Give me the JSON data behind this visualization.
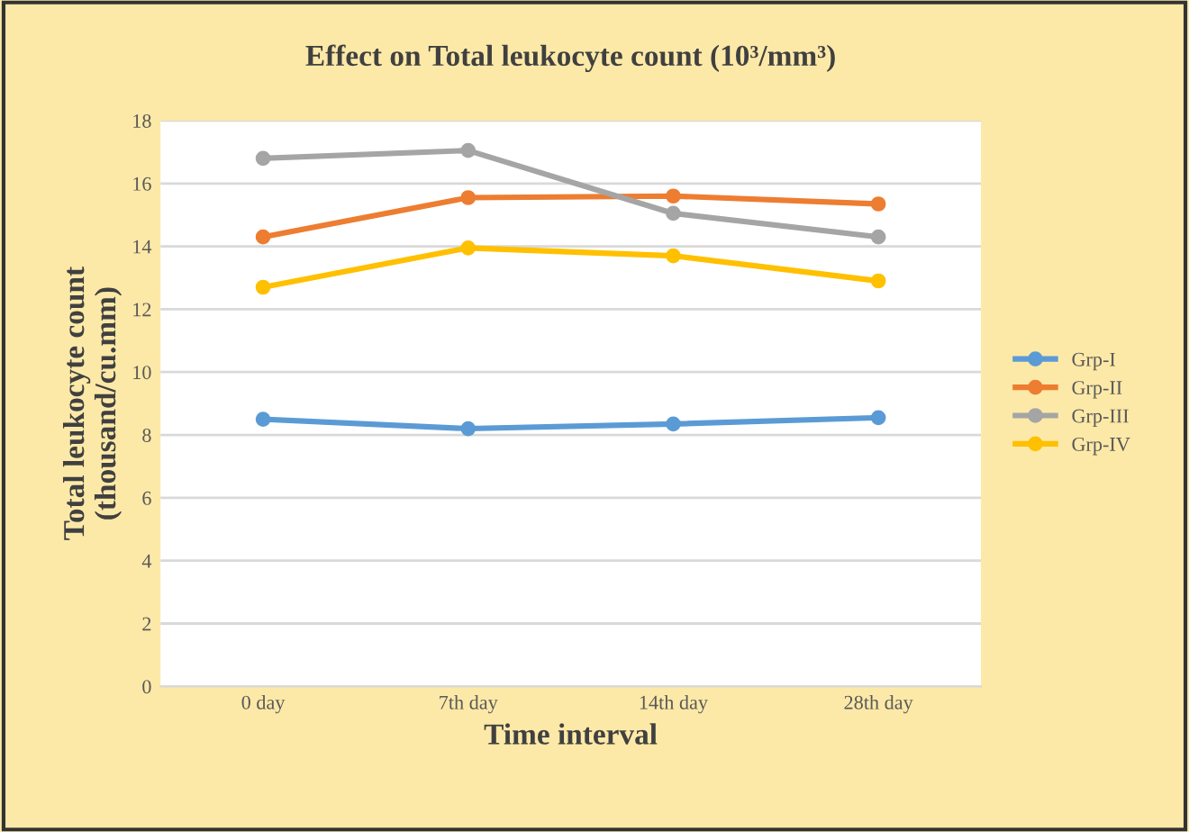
{
  "chart_data": {
    "type": "line",
    "title": "Effect on Total leukocyte count (10³/mm³)",
    "xlabel": "Time interval",
    "ylabel": "Total leukocyte count\n(thousand/cu.mm)",
    "categories": [
      "0 day",
      "7th day",
      "14th day",
      "28th day"
    ],
    "series": [
      {
        "name": "Grp-I",
        "color": "#5b9bd5",
        "values": [
          8.5,
          8.2,
          8.35,
          8.55
        ]
      },
      {
        "name": "Grp-II",
        "color": "#ed7d31",
        "values": [
          14.3,
          15.55,
          15.6,
          15.35
        ]
      },
      {
        "name": "Grp-III",
        "color": "#a5a5a5",
        "values": [
          16.8,
          17.05,
          15.05,
          14.3
        ]
      },
      {
        "name": "Grp-IV",
        "color": "#ffc000",
        "values": [
          12.7,
          13.95,
          13.7,
          12.9
        ]
      }
    ],
    "ylim": [
      0,
      18
    ],
    "yticks": [
      0,
      2,
      4,
      6,
      8,
      10,
      12,
      14,
      16,
      18
    ],
    "grid": "y",
    "legend": "right",
    "marker": "circle",
    "line_style": "solid"
  }
}
